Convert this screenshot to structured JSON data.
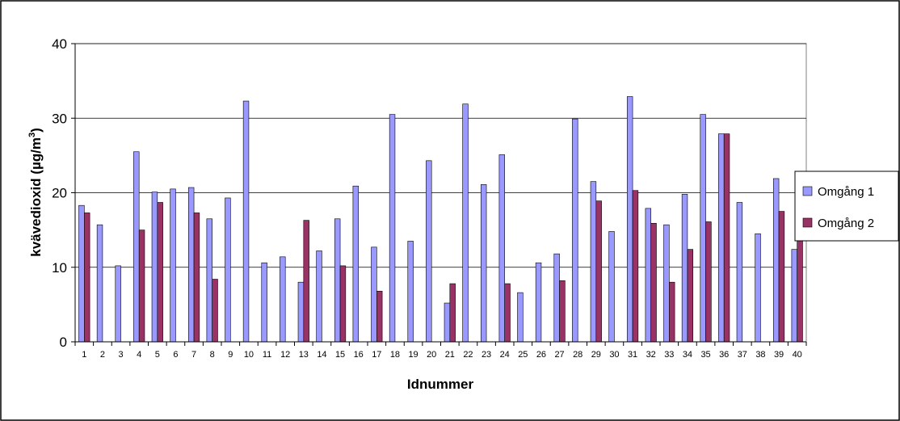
{
  "chart_data": {
    "type": "bar",
    "title": "",
    "xlabel": "Idnummer",
    "ylabel": "kvävedioxid (µg/m",
    "ylabel_superscript": "3",
    "ylabel_suffix": ")",
    "ylim": [
      0,
      40
    ],
    "yticks": [
      0,
      10,
      20,
      30,
      40
    ],
    "grid": "horizontal",
    "legend_position": "right",
    "categories": [
      "1",
      "2",
      "3",
      "4",
      "5",
      "6",
      "7",
      "8",
      "9",
      "10",
      "11",
      "12",
      "13",
      "14",
      "15",
      "16",
      "17",
      "18",
      "19",
      "20",
      "21",
      "22",
      "23",
      "24",
      "25",
      "26",
      "27",
      "28",
      "29",
      "30",
      "31",
      "32",
      "33",
      "34",
      "35",
      "36",
      "37",
      "38",
      "39",
      "40"
    ],
    "series": [
      {
        "name": "Omgång 1",
        "color": "#9999FF",
        "values": [
          18.3,
          15.7,
          10.2,
          25.5,
          20.1,
          20.5,
          20.7,
          16.5,
          19.3,
          32.3,
          10.6,
          11.4,
          8.0,
          12.2,
          16.5,
          20.9,
          12.7,
          30.5,
          13.5,
          24.3,
          5.2,
          31.9,
          21.1,
          25.1,
          6.6,
          10.6,
          11.8,
          29.9,
          21.5,
          14.8,
          32.9,
          17.9,
          15.7,
          19.8,
          30.5,
          27.9,
          18.7,
          14.5,
          21.9,
          12.4
        ]
      },
      {
        "name": "Omgång 2",
        "color": "#993366",
        "values": [
          17.3,
          null,
          null,
          15.0,
          18.7,
          null,
          17.3,
          8.4,
          null,
          null,
          null,
          null,
          16.3,
          null,
          10.2,
          null,
          6.8,
          null,
          null,
          null,
          7.8,
          null,
          null,
          7.8,
          null,
          null,
          8.2,
          null,
          18.9,
          null,
          20.3,
          15.9,
          8.0,
          12.4,
          16.1,
          27.9,
          null,
          null,
          17.5,
          15.9
        ]
      }
    ]
  }
}
